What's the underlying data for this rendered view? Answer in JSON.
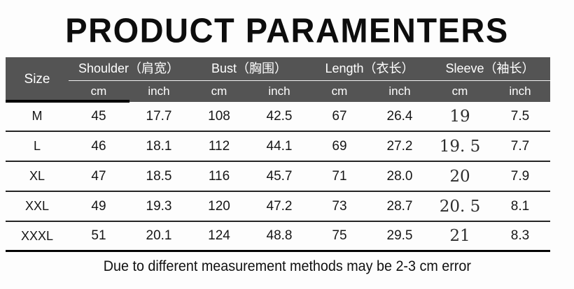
{
  "title": "PRODUCT PARAMENTERS",
  "table": {
    "size_col_header": "Size",
    "groups": [
      {
        "id": "shoulder",
        "label": "Shoulder（肩宽）"
      },
      {
        "id": "bust",
        "label": "Bust（胸围）"
      },
      {
        "id": "length",
        "label": "Length（衣长）"
      },
      {
        "id": "sleeve",
        "label": "Sleeve（袖长）"
      }
    ],
    "unit_headers": [
      "cm",
      "inch",
      "cm",
      "inch",
      "cm",
      "inch",
      "cm",
      "inch"
    ],
    "rows": [
      {
        "size": "M",
        "shoulder_cm": "45",
        "shoulder_inch": "17.7",
        "bust_cm": "108",
        "bust_inch": "42.5",
        "length_cm": "67",
        "length_inch": "26.4",
        "sleeve_cm": "19",
        "sleeve_inch": "7.5"
      },
      {
        "size": "L",
        "shoulder_cm": "46",
        "shoulder_inch": "18.1",
        "bust_cm": "112",
        "bust_inch": "44.1",
        "length_cm": "69",
        "length_inch": "27.2",
        "sleeve_cm": "19. 5",
        "sleeve_inch": "7.7"
      },
      {
        "size": "XL",
        "shoulder_cm": "47",
        "shoulder_inch": "18.5",
        "bust_cm": "116",
        "bust_inch": "45.7",
        "length_cm": "71",
        "length_inch": "28.0",
        "sleeve_cm": "20",
        "sleeve_inch": "7.9"
      },
      {
        "size": "XXL",
        "shoulder_cm": "49",
        "shoulder_inch": "19.3",
        "bust_cm": "120",
        "bust_inch": "47.2",
        "length_cm": "73",
        "length_inch": "28.7",
        "sleeve_cm": "20. 5",
        "sleeve_inch": "8.1"
      },
      {
        "size": "XXXL",
        "shoulder_cm": "51",
        "shoulder_inch": "20.1",
        "bust_cm": "124",
        "bust_inch": "48.8",
        "length_cm": "75",
        "length_inch": "29.5",
        "sleeve_cm": "21",
        "sleeve_inch": "8.3"
      }
    ]
  },
  "footer_note": "Due to different measurement methods may be 2-3 cm error",
  "colors": {
    "header_bg": "#545454",
    "header_text": "#ffffff",
    "title_text": "#0d0d0d",
    "body_text": "#161616",
    "row_rule": "#252525",
    "page_bg": "#fdfdfd"
  }
}
